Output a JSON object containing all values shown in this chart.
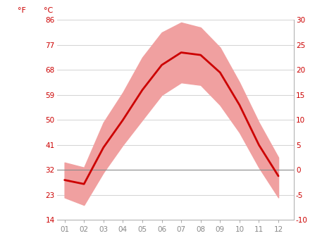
{
  "months": [
    1,
    2,
    3,
    4,
    5,
    6,
    7,
    8,
    9,
    10,
    11,
    12
  ],
  "month_labels": [
    "01",
    "02",
    "03",
    "04",
    "05",
    "06",
    "07",
    "08",
    "09",
    "10",
    "11",
    "12"
  ],
  "avg_temp_c": [
    -2.0,
    -2.8,
    4.5,
    10.0,
    16.0,
    21.0,
    23.5,
    23.0,
    19.5,
    13.0,
    5.0,
    -1.2
  ],
  "temp_high_c": [
    1.5,
    0.5,
    9.5,
    15.5,
    22.5,
    27.5,
    29.5,
    28.5,
    24.5,
    17.5,
    9.5,
    2.5
  ],
  "temp_low_c": [
    -5.5,
    -7.0,
    -0.5,
    5.0,
    10.0,
    15.0,
    17.5,
    17.0,
    13.0,
    7.5,
    0.5,
    -5.5
  ],
  "ylim_c": [
    -10,
    30
  ],
  "yticks_c": [
    -10,
    -5,
    0,
    5,
    10,
    15,
    20,
    25,
    30
  ],
  "yticks_f": [
    14,
    23,
    32,
    41,
    50,
    59,
    68,
    77,
    86
  ],
  "line_color": "#cc0000",
  "band_color": "#f0a0a0",
  "zero_line_color": "#888888",
  "grid_color": "#cccccc",
  "background_color": "#ffffff",
  "tick_label_color": "#cc0000",
  "xticklabel_color": "#888888",
  "figsize": [
    4.74,
    3.55
  ],
  "dpi": 100
}
